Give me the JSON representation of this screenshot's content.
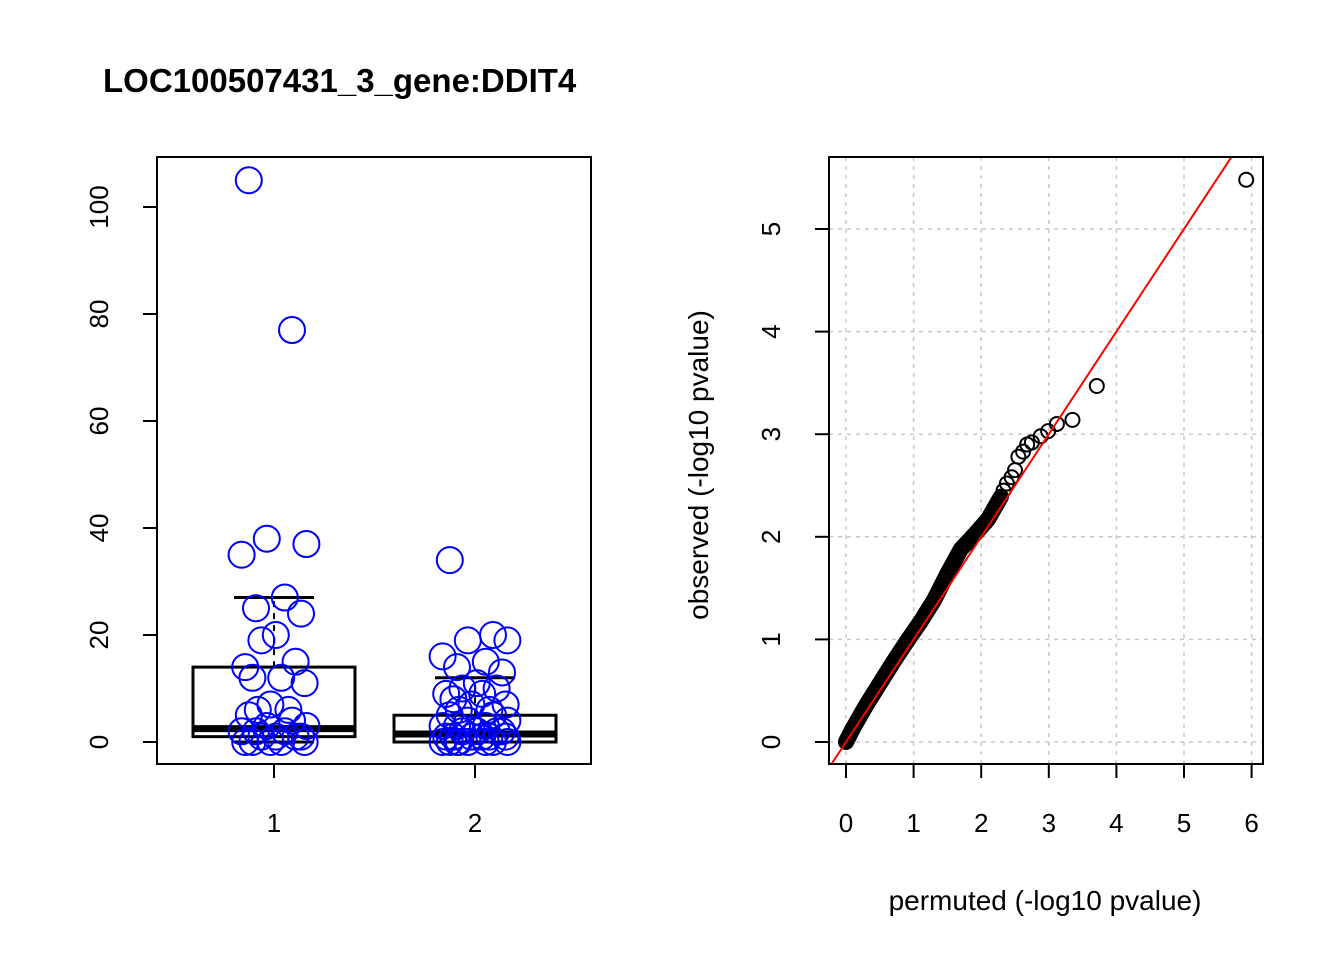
{
  "title": "LOC100507431_3_gene:DDIT4",
  "colors": {
    "points_left": "#0000ff",
    "points_right": "#000000",
    "reference_line": "#ff0000",
    "grid": "#c8c8c8"
  },
  "chart_data": [
    {
      "type": "boxplot",
      "xlabel": "",
      "ylabel": "",
      "categories": [
        "1",
        "2"
      ],
      "ylim": [
        0,
        105
      ],
      "y_ticks": [
        0,
        20,
        40,
        60,
        80,
        100
      ],
      "boxes": [
        {
          "category": "1",
          "min": 0,
          "q1": 1,
          "median": 2.5,
          "q3": 14,
          "whisker_high": 27
        },
        {
          "category": "2",
          "min": 0,
          "q1": 0,
          "median": 1.5,
          "q3": 5,
          "whisker_high": 12
        }
      ],
      "points": [
        {
          "category": "1",
          "values": [
            105,
            77,
            38,
            37,
            35,
            27,
            25,
            24,
            20,
            19,
            15,
            14,
            12,
            12,
            11,
            7,
            6,
            6,
            5,
            4,
            3,
            3,
            2,
            2,
            2,
            1,
            1,
            1,
            1,
            0,
            0,
            0,
            0,
            0
          ]
        },
        {
          "category": "2",
          "values": [
            34,
            20,
            19,
            19,
            16,
            15,
            14,
            13,
            11,
            10,
            10,
            9,
            9,
            8,
            7,
            7,
            6,
            6,
            5,
            5,
            4,
            4,
            3,
            3,
            3,
            2,
            2,
            2,
            2,
            1,
            1,
            1,
            1,
            1,
            1,
            0,
            0,
            0,
            0,
            0,
            0,
            0,
            0
          ]
        }
      ]
    },
    {
      "type": "scatter",
      "xlabel": "permuted (-log10 pvalue)",
      "ylabel": "observed (-log10 pvalue)",
      "xlim": [
        0,
        6
      ],
      "ylim": [
        0,
        5.5
      ],
      "x_ticks": [
        0,
        1,
        2,
        3,
        4,
        5,
        6
      ],
      "y_ticks": [
        0,
        1,
        2,
        3,
        4,
        5
      ],
      "grid": true,
      "reference_line": "y = x",
      "outliers": [
        {
          "x": 5.92,
          "y": 5.48
        },
        {
          "x": 3.71,
          "y": 3.47
        },
        {
          "x": 3.35,
          "y": 3.14
        },
        {
          "x": 3.12,
          "y": 3.1
        },
        {
          "x": 2.99,
          "y": 3.03
        },
        {
          "x": 2.88,
          "y": 2.98
        },
        {
          "x": 2.75,
          "y": 2.92
        },
        {
          "x": 2.68,
          "y": 2.9
        },
        {
          "x": 2.62,
          "y": 2.83
        },
        {
          "x": 2.55,
          "y": 2.78
        },
        {
          "x": 2.5,
          "y": 2.65
        },
        {
          "x": 2.45,
          "y": 2.58
        },
        {
          "x": 2.38,
          "y": 2.52
        },
        {
          "x": 2.33,
          "y": 2.45
        }
      ],
      "dense_trend": [
        {
          "x": 0.0,
          "y": 0.0
        },
        {
          "x": 0.1,
          "y": 0.13
        },
        {
          "x": 0.3,
          "y": 0.36
        },
        {
          "x": 0.5,
          "y": 0.57
        },
        {
          "x": 0.7,
          "y": 0.78
        },
        {
          "x": 0.9,
          "y": 0.98
        },
        {
          "x": 1.1,
          "y": 1.17
        },
        {
          "x": 1.3,
          "y": 1.38
        },
        {
          "x": 1.5,
          "y": 1.64
        },
        {
          "x": 1.7,
          "y": 1.88
        },
        {
          "x": 1.9,
          "y": 2.02
        },
        {
          "x": 2.1,
          "y": 2.17
        },
        {
          "x": 2.3,
          "y": 2.4
        }
      ]
    }
  ]
}
